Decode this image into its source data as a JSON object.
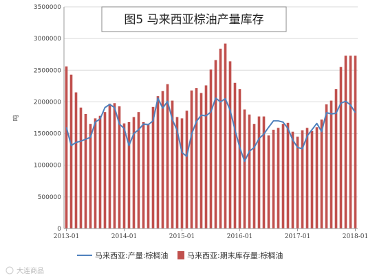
{
  "chart_data": {
    "type": "bar+line",
    "title": "图5 马来西亚棕油产量库存",
    "ylabel": "吨",
    "xlabel": "",
    "ylim": [
      0,
      3500000
    ],
    "yticks": [
      "0",
      "500000",
      "1000000",
      "1500000",
      "2000000",
      "2500000",
      "3000000",
      "3500000"
    ],
    "xtick_labels": [
      "2013-01",
      "2014-01",
      "2015-01",
      "2016-01",
      "2017-01",
      "2018-01"
    ],
    "grid": "horizontal",
    "legend_position": "bottom",
    "categories": [
      "2013-01",
      "2013-02",
      "2013-03",
      "2013-04",
      "2013-05",
      "2013-06",
      "2013-07",
      "2013-08",
      "2013-09",
      "2013-10",
      "2013-11",
      "2013-12",
      "2014-01",
      "2014-02",
      "2014-03",
      "2014-04",
      "2014-05",
      "2014-06",
      "2014-07",
      "2014-08",
      "2014-09",
      "2014-10",
      "2014-11",
      "2014-12",
      "2015-01",
      "2015-02",
      "2015-03",
      "2015-04",
      "2015-05",
      "2015-06",
      "2015-07",
      "2015-08",
      "2015-09",
      "2015-10",
      "2015-11",
      "2015-12",
      "2016-01",
      "2016-02",
      "2016-03",
      "2016-04",
      "2016-05",
      "2016-06",
      "2016-07",
      "2016-08",
      "2016-09",
      "2016-10",
      "2016-11",
      "2016-12",
      "2017-01",
      "2017-02",
      "2017-03",
      "2017-04",
      "2017-05",
      "2017-06",
      "2017-07",
      "2017-08",
      "2017-09",
      "2017-10",
      "2017-11",
      "2017-12",
      "2018-01"
    ],
    "series": [
      {
        "name": "马来西亚:产量:棕榈油",
        "type": "line",
        "color": "#4f81bd",
        "values": [
          1600000,
          1310000,
          1360000,
          1380000,
          1410000,
          1440000,
          1680000,
          1730000,
          1910000,
          1960000,
          1910000,
          1650000,
          1580000,
          1310000,
          1500000,
          1560000,
          1650000,
          1640000,
          1700000,
          2060000,
          1900000,
          2010000,
          1720000,
          1550000,
          1200000,
          1140000,
          1490000,
          1690000,
          1790000,
          1780000,
          1840000,
          2060000,
          2000000,
          2050000,
          1870000,
          1560000,
          1280000,
          1060000,
          1220000,
          1280000,
          1420000,
          1490000,
          1600000,
          1700000,
          1700000,
          1680000,
          1580000,
          1400000,
          1280000,
          1260000,
          1460000,
          1560000,
          1660000,
          1530000,
          1830000,
          1810000,
          1820000,
          1980000,
          2010000,
          1950000,
          1830000
        ]
      },
      {
        "name": "马来西亚:期末库存量:棕榈油",
        "type": "bar",
        "color": "#c0504d",
        "values": [
          2560000,
          2430000,
          2150000,
          1910000,
          1810000,
          1650000,
          1740000,
          1780000,
          1840000,
          1970000,
          1980000,
          1930000,
          1660000,
          1680000,
          1760000,
          1840000,
          1680000,
          1650000,
          1920000,
          2090000,
          2170000,
          2280000,
          2020000,
          1760000,
          1740000,
          1860000,
          2180000,
          2220000,
          2140000,
          2260000,
          2510000,
          2660000,
          2840000,
          2920000,
          2640000,
          2300000,
          2200000,
          1880000,
          1800000,
          1650000,
          1770000,
          1770000,
          1470000,
          1560000,
          1590000,
          1650000,
          1670000,
          1530000,
          1450000,
          1550000,
          1590000,
          1540000,
          1600000,
          1720000,
          1960000,
          2020000,
          2200000,
          2550000,
          2730000,
          2730000,
          2730000
        ]
      }
    ]
  },
  "watermark": "大连商品"
}
